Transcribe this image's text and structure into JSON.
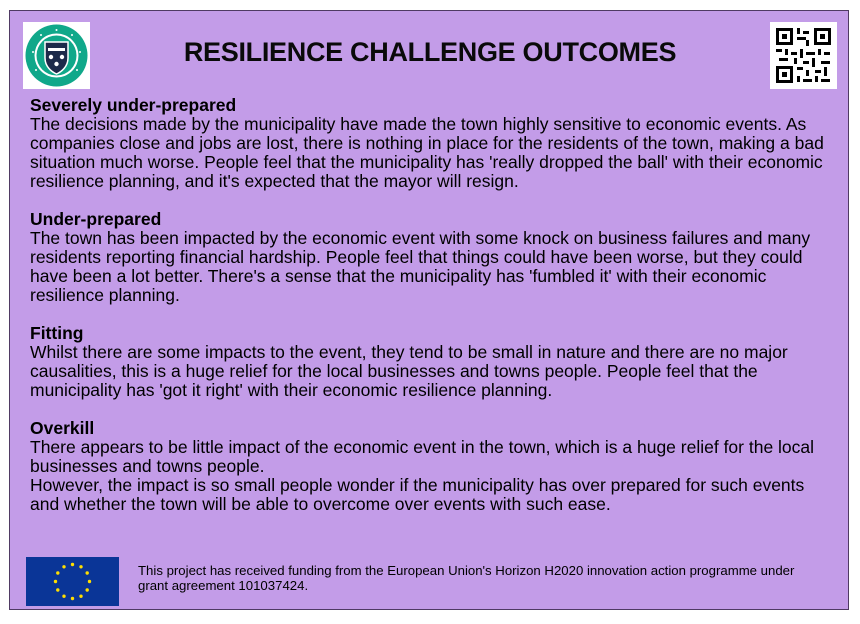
{
  "title": "RESILIENCE CHALLENGE OUTCOMES",
  "logo": {
    "icon": "university-crest-icon",
    "ring_text": "UNIVERSITY OF EXETER"
  },
  "qr": {
    "icon": "qr-code-icon"
  },
  "sections": [
    {
      "heading": "Severely under-prepared",
      "paragraphs": [
        "The decisions made by the municipality have made the town highly sensitive to economic events. As companies close and jobs are lost, there is nothing in place for the residents of the town, making a bad situation much worse. People feel that the municipality has 'really dropped the ball' with their economic resilience planning, and it's expected that the mayor will resign."
      ]
    },
    {
      "heading": "Under-prepared",
      "paragraphs": [
        "The town has been impacted by the economic event with some knock on business failures and many residents reporting financial hardship. People feel that things could have been worse, but they could have been a lot better. There's a sense that the municipality has 'fumbled it' with their economic resilience planning."
      ]
    },
    {
      "heading": "Fitting",
      "paragraphs": [
        "Whilst there are some impacts to the event, they tend to be small in nature and there are no major causalities, this is a huge relief for the local businesses and towns people. People feel that the municipality has 'got it right' with their economic resilience planning."
      ]
    },
    {
      "heading": "Overkill",
      "paragraphs": [
        "There appears to be little impact of the economic event in the town, which is a huge relief for the local businesses and towns people.",
        "However, the impact is so small people wonder if the municipality has over prepared for such events and whether the town will be able to overcome over events with such ease."
      ]
    }
  ],
  "footer": {
    "flag_icon": "eu-flag-icon",
    "funding_text": "This project has received funding from the European Union's Horizon H2020 innovation action programme under grant agreement 101037424."
  },
  "colors": {
    "card": "#c39ce8",
    "logo_ring": "#10a88a",
    "eu_blue": "#0a3597",
    "eu_star": "#ffde00"
  }
}
